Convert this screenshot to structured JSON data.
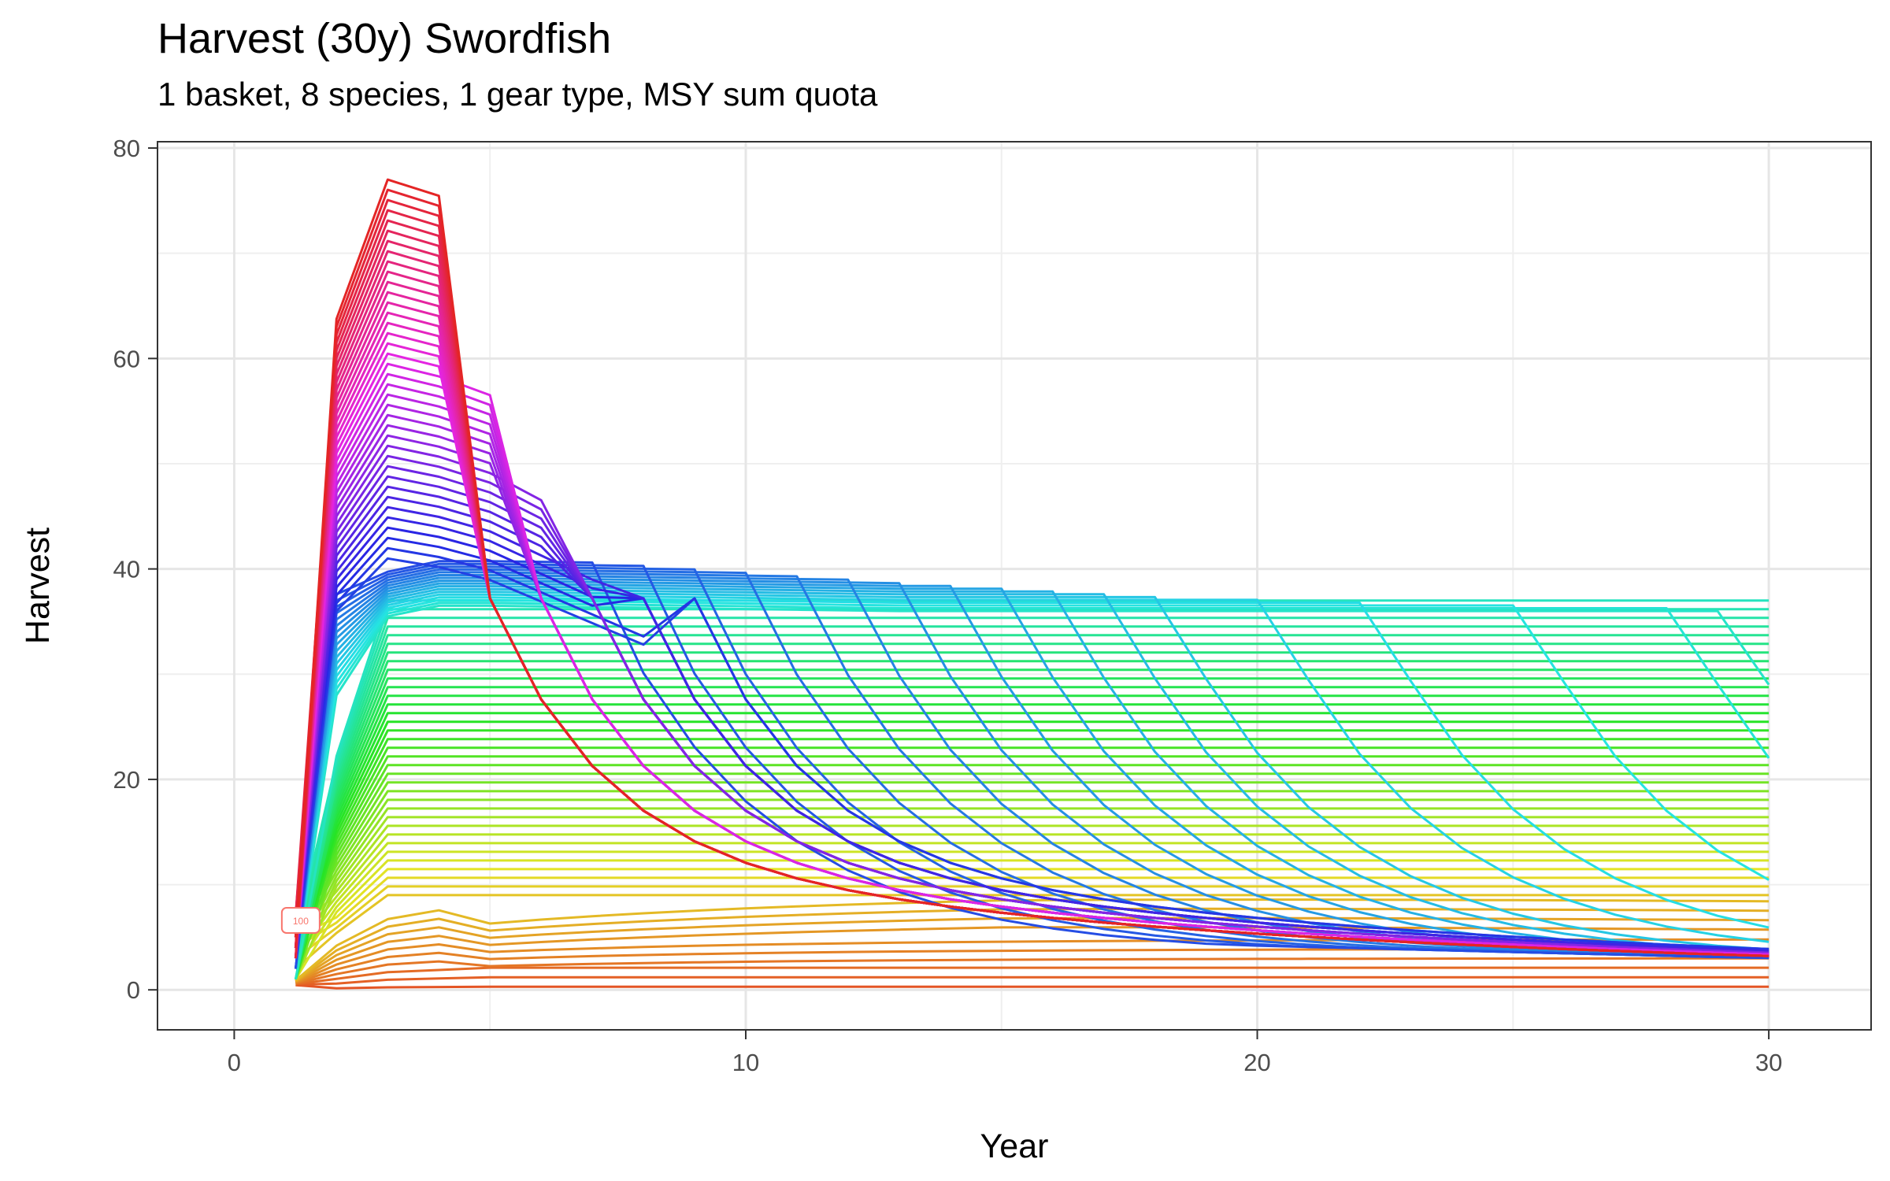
{
  "chart_data": {
    "type": "line",
    "title": "Harvest (30y) Swordfish",
    "subtitle": "1 basket, 8 species, 1 gear type, MSY sum quota",
    "xlabel": "Year",
    "ylabel": "Harvest",
    "xlim": [
      -1.5,
      32
    ],
    "ylim": [
      -3.8,
      80.6
    ],
    "x_ticks": [
      0,
      10,
      20,
      30
    ],
    "y_ticks": [
      0,
      20,
      40,
      60,
      80
    ],
    "grid": true,
    "legend": "none",
    "n_series": 100,
    "label_box": {
      "text": "100",
      "x": 1.3,
      "y": 6.6
    },
    "series_families": [
      {
        "group": "low",
        "range": [
          1,
          10
        ],
        "color_hue_range": [
          15,
          35
        ],
        "years": [
          1,
          2,
          3,
          10,
          20,
          30
        ],
        "harvest_first": [
          1.0,
          1.5,
          2.0,
          2.5,
          3.5,
          4.5,
          5.5,
          6.5,
          7.5,
          8.5
        ],
        "note": "near-flat low trajectories 0.3 to 9"
      },
      {
        "group": "mid-flat",
        "range": [
          11,
          45
        ],
        "color_hue_range": [
          35,
          140
        ],
        "years": [
          1,
          2,
          3,
          30
        ],
        "harvest_year3_min": 9,
        "harvest_year3_max": 37,
        "harvest_year30": "same as year3"
      },
      {
        "group": "crash-late",
        "range": [
          46,
          62
        ],
        "color_hue_range": [
          140,
          200
        ],
        "crash_years": [
          30,
          29,
          26,
          23,
          21,
          19,
          18,
          17,
          16,
          15,
          14,
          13,
          12,
          11,
          10,
          9,
          8
        ],
        "peak_plateau_min": 36.5,
        "peak_plateau_max": 41
      },
      {
        "group": "crash-early",
        "range": [
          63,
          100
        ],
        "color_hue_range": [
          200,
          375
        ],
        "peak_year": [
          3,
          4
        ],
        "peak_min": 41,
        "peak_max": 77,
        "crash_years": [
          9,
          8,
          7,
          6,
          5
        ],
        "tail_year30": 3
      }
    ]
  }
}
